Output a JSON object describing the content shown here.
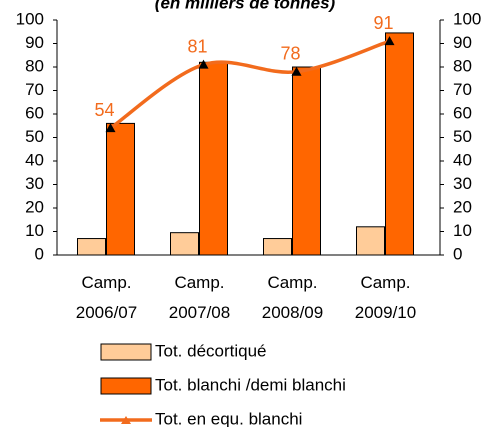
{
  "chart_data": {
    "type": "bar",
    "title": "(en milliers de tonnes)",
    "categories": [
      "Camp.\n2006/07",
      "Camp.\n2007/08",
      "Camp.\n2008/09",
      "Camp.\n2009/10"
    ],
    "series": [
      {
        "name": "Tot. décortiqué",
        "type": "bar",
        "color": "#FFCC99",
        "values": [
          7,
          9.5,
          7,
          12
        ]
      },
      {
        "name": "Tot. blanchi /demi blanchi",
        "type": "bar",
        "color": "#FF6600",
        "values": [
          56,
          82,
          80,
          94.5
        ]
      },
      {
        "name": "Tot. en equ. blanchi",
        "type": "line",
        "color": "#F26B1D",
        "axis": "y2",
        "values": [
          54,
          81,
          78,
          91
        ]
      }
    ],
    "ylim": [
      0,
      100
    ],
    "yticks": [
      0,
      10,
      20,
      30,
      40,
      50,
      60,
      70,
      80,
      90,
      100
    ],
    "y2lim": [
      0,
      100
    ],
    "y2ticks": [
      0,
      10,
      20,
      30,
      40,
      50,
      60,
      70,
      80,
      90,
      100
    ],
    "legend": "bottom",
    "grid": false
  }
}
